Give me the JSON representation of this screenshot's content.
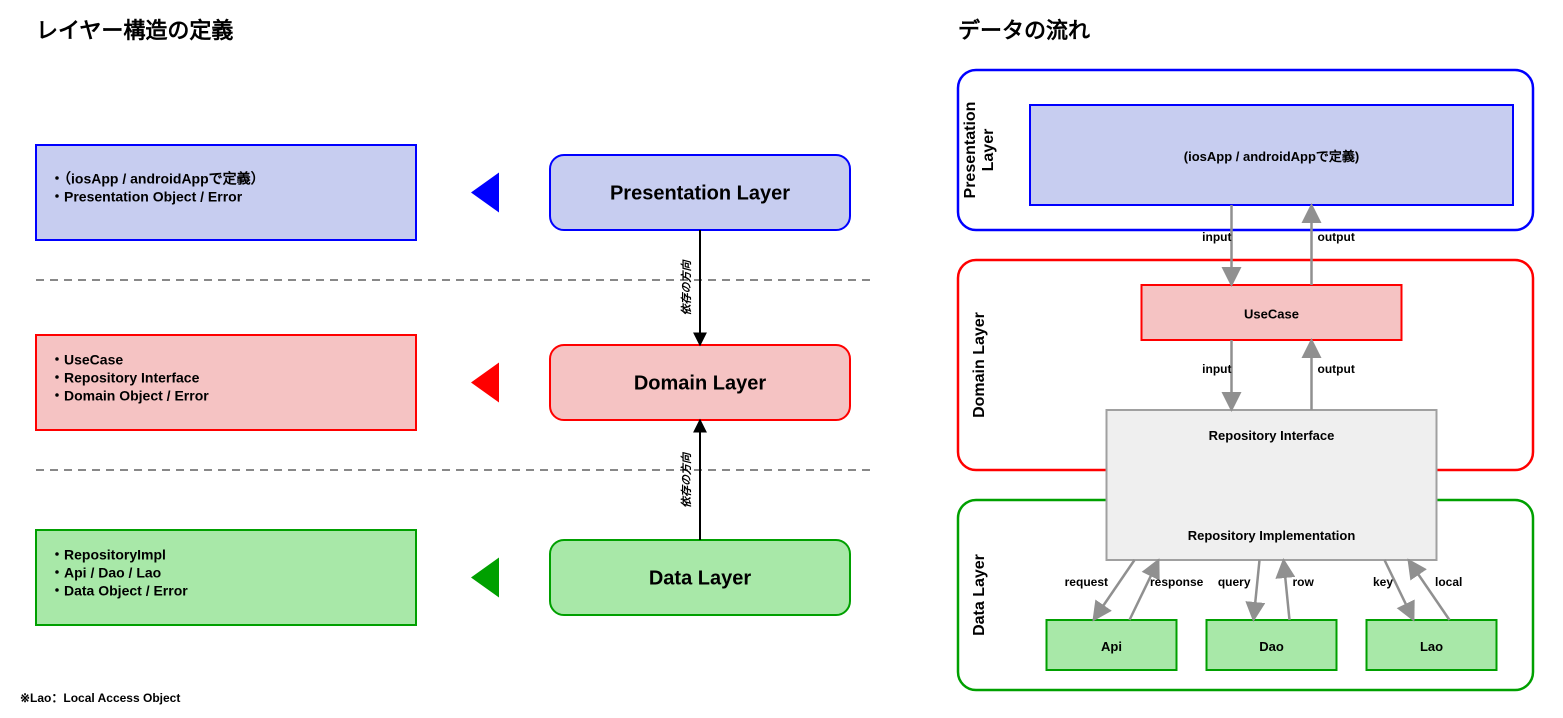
{
  "titles": {
    "left": "レイヤー構造の定義",
    "right": "データの流れ"
  },
  "footnote": "※Lao：Local Access Object",
  "colors": {
    "blue_border": "#0000ff",
    "blue_fill": "#c7cdf0",
    "blue_fill_light": "#c7cdf0",
    "red_border": "#ff0000",
    "red_fill": "#f5c3c3",
    "green_border": "#00a000",
    "green_fill": "#a8e8a8",
    "grey_fill": "#efefef",
    "grey_border": "#a0a0a0",
    "arrow_grey": "#909090",
    "black": "#000000",
    "dash": "#888888"
  },
  "left": {
    "layers": [
      {
        "name": "Presentation Layer",
        "bullets": [
          "・（iosApp / androidAppで定義）",
          "・Presentation Object / Error"
        ],
        "border": "#0000ff",
        "fill": "#c7cdf0"
      },
      {
        "name": "Domain Layer",
        "bullets": [
          "・UseCase",
          "・Repository Interface",
          "・Domain Object / Error"
        ],
        "border": "#ff0000",
        "fill": "#f5c3c3"
      },
      {
        "name": "Data Layer",
        "bullets": [
          "・RepositoryImpl",
          "・Api / Dao / Lao",
          "・Data Object / Error"
        ],
        "border": "#00a000",
        "fill": "#a8e8a8"
      }
    ],
    "dep_label": "依存の方向"
  },
  "right": {
    "presentation_box": "(iosApp / androidAppで定義)",
    "usecase": "UseCase",
    "repo_interface": "Repository Interface",
    "repo_impl": "Repository Implementation",
    "data_boxes": [
      "Api",
      "Dao",
      "Lao"
    ],
    "vlabels": {
      "presentation": [
        "Presentation",
        "Layer"
      ],
      "domain": "Domain Layer",
      "data": "Data Layer"
    },
    "flow_labels": {
      "input": "input",
      "output": "output",
      "request": "request",
      "response": "response",
      "query": "query",
      "row": "row",
      "key": "key",
      "local": "local"
    }
  }
}
